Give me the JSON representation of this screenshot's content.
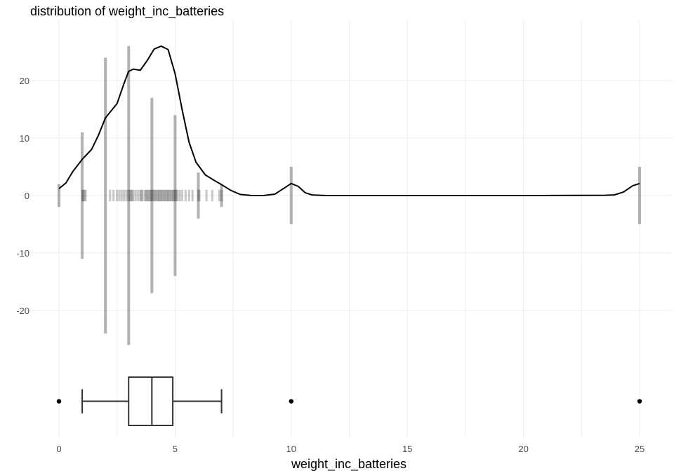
{
  "chart_data": {
    "type": "histogram-density-box",
    "title": "distribution of weight_inc_batteries",
    "xlabel": "weight_inc_batteries",
    "ylabel": "",
    "xlim": [
      -0.6,
      25.6
    ],
    "ylim": [
      -29,
      28
    ],
    "x_ticks": [
      0,
      5,
      10,
      15,
      20,
      25
    ],
    "y_ticks": [
      -20,
      -10,
      0,
      10,
      20
    ],
    "grid": true,
    "colors": {
      "bars": "#7f7f7f",
      "density": "#000000",
      "box": "#333333",
      "grid": "#ebebeb"
    },
    "bars": [
      {
        "x": 0,
        "count": 2
      },
      {
        "x": 1,
        "count": 11
      },
      {
        "x": 2,
        "count": 24
      },
      {
        "x": 3,
        "count": 26
      },
      {
        "x": 4,
        "count": 17
      },
      {
        "x": 5,
        "count": 14
      },
      {
        "x": 6,
        "count": 4
      },
      {
        "x": 7,
        "count": 2
      },
      {
        "x": 10,
        "count": 5
      },
      {
        "x": 25,
        "count": 5
      }
    ],
    "rug": [
      1.0,
      1.05,
      1.1,
      1.15,
      2.2,
      2.35,
      2.5,
      2.6,
      2.7,
      2.8,
      2.9,
      3.0,
      3.05,
      3.1,
      3.15,
      3.2,
      3.3,
      3.4,
      3.5,
      3.55,
      3.6,
      3.7,
      3.75,
      3.8,
      3.85,
      3.9,
      3.95,
      4.0,
      4.05,
      4.1,
      4.15,
      4.2,
      4.25,
      4.3,
      4.35,
      4.4,
      4.45,
      4.5,
      4.55,
      4.6,
      4.65,
      4.7,
      4.75,
      4.8,
      4.85,
      4.9,
      4.95,
      5.0,
      5.05,
      5.1,
      5.2,
      5.3,
      5.45,
      5.6,
      5.75,
      6.0,
      6.05,
      6.35,
      6.6,
      6.9,
      7.0
    ],
    "density": [
      [
        0,
        1.2
      ],
      [
        0.3,
        2.2
      ],
      [
        0.6,
        4.2
      ],
      [
        1,
        6.3
      ],
      [
        1.4,
        8
      ],
      [
        1.7,
        10.5
      ],
      [
        2,
        13.5
      ],
      [
        2.3,
        15
      ],
      [
        2.5,
        16
      ],
      [
        2.8,
        19.5
      ],
      [
        3,
        21.6
      ],
      [
        3.2,
        22
      ],
      [
        3.5,
        21.8
      ],
      [
        3.8,
        23.5
      ],
      [
        4.1,
        25.5
      ],
      [
        4.4,
        26
      ],
      [
        4.7,
        25.4
      ],
      [
        5,
        21.2
      ],
      [
        5.3,
        15
      ],
      [
        5.6,
        9.3
      ],
      [
        5.9,
        5.8
      ],
      [
        6.3,
        3.6
      ],
      [
        6.7,
        2.6
      ],
      [
        7,
        1.9
      ],
      [
        7.4,
        0.9
      ],
      [
        7.8,
        0.2
      ],
      [
        8.3,
        0
      ],
      [
        8.8,
        0
      ],
      [
        9.3,
        0.25
      ],
      [
        9.7,
        1.3
      ],
      [
        10,
        2.1
      ],
      [
        10.3,
        1.6
      ],
      [
        10.6,
        0.5
      ],
      [
        10.9,
        0.1
      ],
      [
        11.5,
        0
      ],
      [
        15,
        0
      ],
      [
        20,
        0
      ],
      [
        23.5,
        0.05
      ],
      [
        23.9,
        0.1
      ],
      [
        24.3,
        0.6
      ],
      [
        24.7,
        1.7
      ],
      [
        25,
        2.1
      ]
    ],
    "box": {
      "ymid": -35.8,
      "halfheight": 4.2,
      "min": 1,
      "q1": 3,
      "median": 4,
      "q3": 4.9,
      "max": 7,
      "outliers": [
        0,
        10,
        25
      ]
    }
  }
}
